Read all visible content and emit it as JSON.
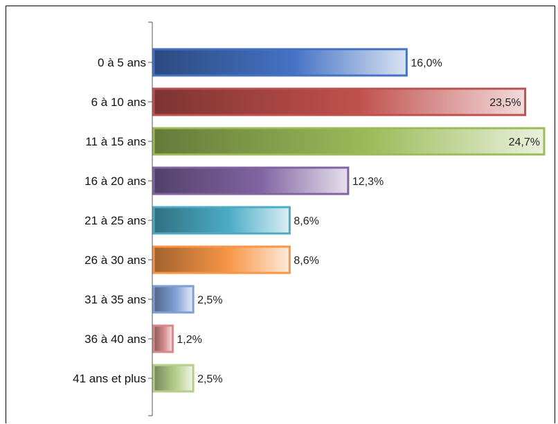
{
  "chart_data": {
    "type": "bar",
    "orientation": "horizontal",
    "categories": [
      "0 à 5 ans",
      "6 à 10 ans",
      "11 à 15 ans",
      "16 à 20 ans",
      "21 à 25 ans",
      "26 à 30 ans",
      "31 à 35 ans",
      "36 à 40 ans",
      "41 ans et plus"
    ],
    "values": [
      16.0,
      23.5,
      24.7,
      12.3,
      8.6,
      8.6,
      2.5,
      1.2,
      2.5
    ],
    "value_labels": [
      "16,0%",
      "23,5%",
      "24,7%",
      "12,3%",
      "8,6%",
      "8,6%",
      "2,5%",
      "1,2%",
      "2,5%"
    ],
    "colors": [
      "#4472c4",
      "#c0504d",
      "#9bbb59",
      "#8064a2",
      "#4bacc6",
      "#f79646",
      "#7f9fd4",
      "#d48a88",
      "#b5cf8a"
    ],
    "xlim": [
      0,
      24.7
    ],
    "grid": false,
    "title": "",
    "xlabel": "",
    "ylabel": ""
  }
}
